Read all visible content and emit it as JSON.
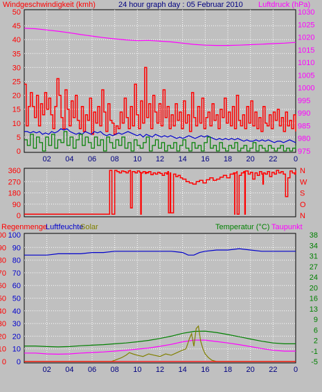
{
  "title_wind": "Windgeschwindigkeit (kmh)",
  "title_date": "24 hour graph day : 05 Februar 2010",
  "title_pressure": "Luftdruck (hPa)",
  "label_rain": "Regenmenge",
  "label_humidity": "Luftfeuchte",
  "label_solar": "Solar",
  "label_temp": "Temperatur (°C)",
  "label_dew": "Taupunkt",
  "colors": {
    "wind": "#ff0000",
    "wind_avg": "#0000cc",
    "wind_green": "#008000",
    "pressure": "#ff00ff",
    "dir": "#ff0000",
    "humidity": "#0000cc",
    "temp": "#008000",
    "dew": "#ff00ff",
    "solar": "#808000",
    "rain": "#ff0000",
    "plot_bg": "#c0c0c0",
    "grid": "#ffffff"
  },
  "chart_data": [
    {
      "type": "line",
      "panel": "wind-pressure",
      "x_ticks": [
        "02",
        "04",
        "06",
        "08",
        "10",
        "12",
        "14",
        "16",
        "18",
        "20",
        "22",
        "0"
      ],
      "y_left_ticks": [
        "0",
        "5",
        "10",
        "15",
        "20",
        "25",
        "30",
        "35",
        "40",
        "45",
        "50"
      ],
      "y_left_range": [
        0,
        50
      ],
      "y_right_ticks": [
        "975",
        "980",
        "985",
        "990",
        "995",
        "1000",
        "1005",
        "1010",
        "1015",
        "1020",
        "1025",
        "1030"
      ],
      "y_right_range": [
        975,
        1030
      ],
      "series": [
        {
          "name": "Windgeschwindigkeit (kmh)",
          "axis": "left",
          "style": "step",
          "values": [
            24,
            9,
            16,
            21,
            16,
            12,
            20,
            9,
            17,
            13,
            21,
            15,
            19,
            13,
            8,
            16,
            26,
            20,
            12,
            8,
            22,
            15,
            9,
            18,
            12,
            20,
            11,
            8,
            16,
            7,
            13,
            11,
            19,
            6,
            14,
            10,
            16,
            9,
            22,
            14,
            7,
            17,
            11,
            10,
            6,
            9,
            8,
            14,
            10,
            19,
            12,
            8,
            16,
            9,
            24,
            13,
            8,
            18,
            10,
            30,
            12,
            17,
            8,
            20,
            14,
            10,
            17,
            9,
            22,
            12,
            16,
            8,
            13,
            9,
            17,
            11,
            14,
            8,
            18,
            10,
            13,
            7,
            21,
            12,
            9,
            16,
            10,
            19,
            8,
            12,
            14,
            9,
            17,
            11,
            13,
            8,
            15,
            12,
            19,
            10,
            14,
            9,
            16,
            8,
            20,
            11,
            9,
            13,
            8,
            16,
            10,
            18,
            9,
            14,
            8,
            12,
            7,
            16,
            10,
            9,
            13,
            8,
            14,
            11,
            15,
            9,
            12,
            7,
            14,
            9,
            11,
            8,
            13,
            7
          ]
        },
        {
          "name": "",
          "axis": "left",
          "style": "line",
          "values": [
            7,
            7,
            6.5,
            7,
            6.5,
            7,
            6,
            6.5,
            6,
            7,
            6.5,
            7,
            8,
            7.5,
            8,
            7,
            6.5,
            6,
            6.5,
            6,
            7,
            6.5,
            6,
            7,
            6.5,
            7,
            6,
            5.5,
            6,
            5.5,
            6,
            6.5,
            6,
            6.5,
            7,
            6.5,
            6,
            5.5,
            6,
            5,
            6,
            5.5,
            5,
            6,
            5.5,
            5,
            5.5,
            5,
            5.5,
            5,
            4.5,
            5,
            4.5,
            5,
            5.5,
            5,
            4.5,
            5,
            5.5,
            5,
            5.5,
            5,
            4.5,
            4,
            4.5,
            4,
            4.5,
            4,
            4.5,
            4,
            4.5,
            4,
            3.5,
            4,
            3.5,
            3.5,
            4,
            3.5,
            4,
            3.5,
            4,
            3.5,
            3,
            3.5,
            3.5,
            3,
            3.5,
            4,
            3.5,
            3
          ]
        },
        {
          "name": "",
          "axis": "left",
          "style": "step",
          "values": [
            4,
            2,
            6,
            1,
            5,
            3,
            0,
            5,
            2,
            6,
            1,
            4,
            3,
            7,
            2,
            5,
            1,
            4,
            6,
            2,
            5,
            3,
            1,
            5,
            2,
            4,
            0,
            5,
            3,
            1,
            4,
            2,
            5,
            1,
            3,
            0,
            4,
            2,
            1,
            3,
            5,
            0,
            2,
            4,
            1,
            3,
            0,
            2,
            1,
            3,
            0,
            2,
            4,
            1,
            0,
            3,
            1,
            2,
            0,
            3,
            5,
            1,
            2,
            0,
            3,
            1,
            0,
            2,
            1,
            3,
            0,
            1,
            2,
            0,
            1,
            3,
            0,
            2,
            1,
            0,
            2,
            1,
            0,
            1,
            2,
            0,
            1,
            0,
            1,
            2
          ]
        },
        {
          "name": "Luftdruck (hPa)",
          "axis": "right",
          "style": "line",
          "x": [
            0,
            1,
            2,
            3,
            4,
            5,
            6,
            7,
            8,
            9,
            10,
            11,
            12,
            13,
            14,
            15,
            16,
            17,
            18,
            19,
            20,
            21,
            22,
            23,
            24
          ],
          "values": [
            1023.5,
            1023.3,
            1022.8,
            1022.3,
            1021.7,
            1021.0,
            1020.4,
            1019.8,
            1019.3,
            1018.9,
            1018.6,
            1018.7,
            1018.4,
            1018.1,
            1017.6,
            1017.1,
            1016.8,
            1016.7,
            1016.7,
            1016.8,
            1017.0,
            1017.2,
            1017.4,
            1017.6,
            1017.9
          ]
        }
      ]
    },
    {
      "type": "line",
      "panel": "wind-direction",
      "y_left_ticks": [
        "0",
        "90",
        "180",
        "270",
        "360"
      ],
      "y_range": [
        0,
        360
      ],
      "y_right_ticks": [
        "N",
        "O",
        "S",
        "W",
        "N"
      ],
      "series": [
        {
          "name": "",
          "style": "step",
          "x": [
            0,
            7.5,
            7.55,
            7.7,
            7.75,
            8.0,
            8.2,
            8.4,
            8.6,
            8.8,
            9.0,
            9.2,
            9.35,
            9.4,
            9.5,
            9.55,
            9.8,
            10.0,
            10.2,
            10.3,
            10.35,
            10.5,
            10.7,
            10.8,
            10.9,
            11.0,
            11.2,
            11.4,
            11.6,
            11.8,
            12.0,
            12.2,
            12.4,
            12.6,
            12.7,
            12.75,
            12.9,
            12.95,
            13.2,
            13.4,
            13.6,
            13.8,
            14.0,
            14.3,
            14.6,
            14.9,
            15.2,
            15.5,
            15.8,
            16.1,
            16.4,
            16.7,
            17.0,
            17.3,
            17.6,
            17.9,
            18.2,
            18.5,
            18.6,
            18.62,
            18.8,
            18.82,
            19.0,
            19.2,
            19.4,
            19.5,
            19.55,
            19.8,
            20.0,
            20.2,
            20.4,
            20.6,
            20.8,
            21.0,
            21.1,
            21.15,
            21.3,
            21.5,
            21.7,
            21.9,
            22.1,
            22.3,
            22.5,
            22.7,
            22.9,
            23.1,
            23.3,
            23.5,
            23.7,
            23.9,
            24.0
          ],
          "values": [
            10,
            10,
            360,
            360,
            10,
            360,
            350,
            340,
            355,
            350,
            340,
            355,
            360,
            60,
            60,
            350,
            340,
            355,
            345,
            10,
            340,
            350,
            335,
            345,
            340,
            350,
            325,
            340,
            330,
            345,
            335,
            320,
            340,
            330,
            350,
            20,
            340,
            20,
            330,
            310,
            320,
            300,
            290,
            270,
            260,
            250,
            270,
            280,
            260,
            285,
            300,
            280,
            290,
            305,
            320,
            300,
            330,
            340,
            10,
            340,
            350,
            10,
            320,
            340,
            350,
            10,
            355,
            330,
            345,
            290,
            340,
            320,
            350,
            330,
            250,
            340,
            330,
            350,
            310,
            345,
            330,
            360,
            340,
            350,
            330,
            150,
            300,
            355,
            340,
            330,
            360
          ]
        }
      ]
    },
    {
      "type": "line",
      "panel": "rain-humidity-solar-temp",
      "x_ticks": [
        "02",
        "04",
        "06",
        "08",
        "10",
        "12",
        "14",
        "16",
        "18",
        "20",
        "22",
        "0"
      ],
      "y_left_ticks": [
        "0",
        "10",
        "20",
        "30",
        "40",
        "50",
        "60",
        "70",
        "80",
        "90",
        "100"
      ],
      "y_left_ticks_rain": [
        "0",
        "10",
        "20",
        "30",
        "40",
        "50",
        "60",
        "70",
        "80",
        "90",
        "100"
      ],
      "y_right_ticks": [
        "-5",
        "-1",
        "2",
        "6",
        "9",
        "13",
        "16",
        "20",
        "24",
        "27",
        "31",
        "34",
        "38"
      ],
      "y_right_range": [
        -5,
        40
      ],
      "y_left_range": [
        0,
        100
      ],
      "series": [
        {
          "name": "Luftfeuchte",
          "axis": "left",
          "style": "line",
          "x": [
            0,
            1,
            2,
            3,
            4,
            5,
            6,
            7,
            8,
            9,
            10,
            11,
            12,
            13,
            14,
            14.5,
            15,
            15.5,
            16,
            17,
            18,
            19,
            20,
            21,
            22,
            23,
            24
          ],
          "values": [
            84,
            84,
            84,
            85,
            85,
            85,
            86,
            86,
            87,
            87,
            87,
            87,
            87,
            87,
            86,
            84,
            84,
            86,
            87,
            88,
            88,
            89,
            88,
            87,
            87,
            87,
            87
          ]
        },
        {
          "name": "Temperatur (°C)",
          "axis": "right",
          "style": "line",
          "x": [
            0,
            1,
            2,
            3,
            4,
            5,
            6,
            7,
            8,
            9,
            10,
            11,
            12,
            13,
            14,
            15,
            16,
            17,
            18,
            19,
            20,
            21,
            22,
            23,
            24
          ],
          "values": [
            0.5,
            0.5,
            0.3,
            0.2,
            0.3,
            0.6,
            0.8,
            1.0,
            1.3,
            1.6,
            2.0,
            2.5,
            3.2,
            4.0,
            5.0,
            5.7,
            5.8,
            5.3,
            4.6,
            3.8,
            3.0,
            2.2,
            1.6,
            1.3,
            1.3
          ]
        },
        {
          "name": "Taupunkt",
          "axis": "right",
          "style": "line",
          "x": [
            0,
            1,
            2,
            3,
            4,
            5,
            6,
            7,
            8,
            9,
            10,
            11,
            12,
            13,
            14,
            15,
            16,
            17,
            18,
            19,
            20,
            21,
            22,
            23,
            24
          ],
          "values": [
            -2.0,
            -2.0,
            -2.3,
            -2.4,
            -2.3,
            -2.0,
            -1.8,
            -1.6,
            -1.3,
            -1.0,
            -0.6,
            -0.2,
            0.4,
            1.1,
            2.0,
            2.6,
            2.6,
            2.1,
            1.6,
            1.0,
            0.3,
            -0.4,
            -1.0,
            -1.3,
            -1.3
          ]
        },
        {
          "name": "Solar",
          "axis": "left",
          "style": "line",
          "x": [
            0,
            7.7,
            8.0,
            8.3,
            8.6,
            9.0,
            9.3,
            9.6,
            10.0,
            10.5,
            11.0,
            11.5,
            12.0,
            12.5,
            13.0,
            13.5,
            14.0,
            14.3,
            14.6,
            14.8,
            15.0,
            15.2,
            15.4,
            15.6,
            15.8,
            16.0,
            16.3,
            16.6,
            17.0,
            24.0
          ],
          "values": [
            0,
            0,
            1,
            2,
            3,
            5,
            7,
            6,
            5,
            4,
            6,
            5,
            4,
            6,
            5,
            7,
            9,
            10,
            18,
            22,
            12,
            26,
            28,
            16,
            10,
            6,
            3,
            1,
            0,
            0
          ]
        },
        {
          "name": "Regenmenge",
          "axis": "left",
          "style": "line",
          "x": [
            0,
            24
          ],
          "values": [
            0,
            0
          ]
        }
      ]
    }
  ]
}
